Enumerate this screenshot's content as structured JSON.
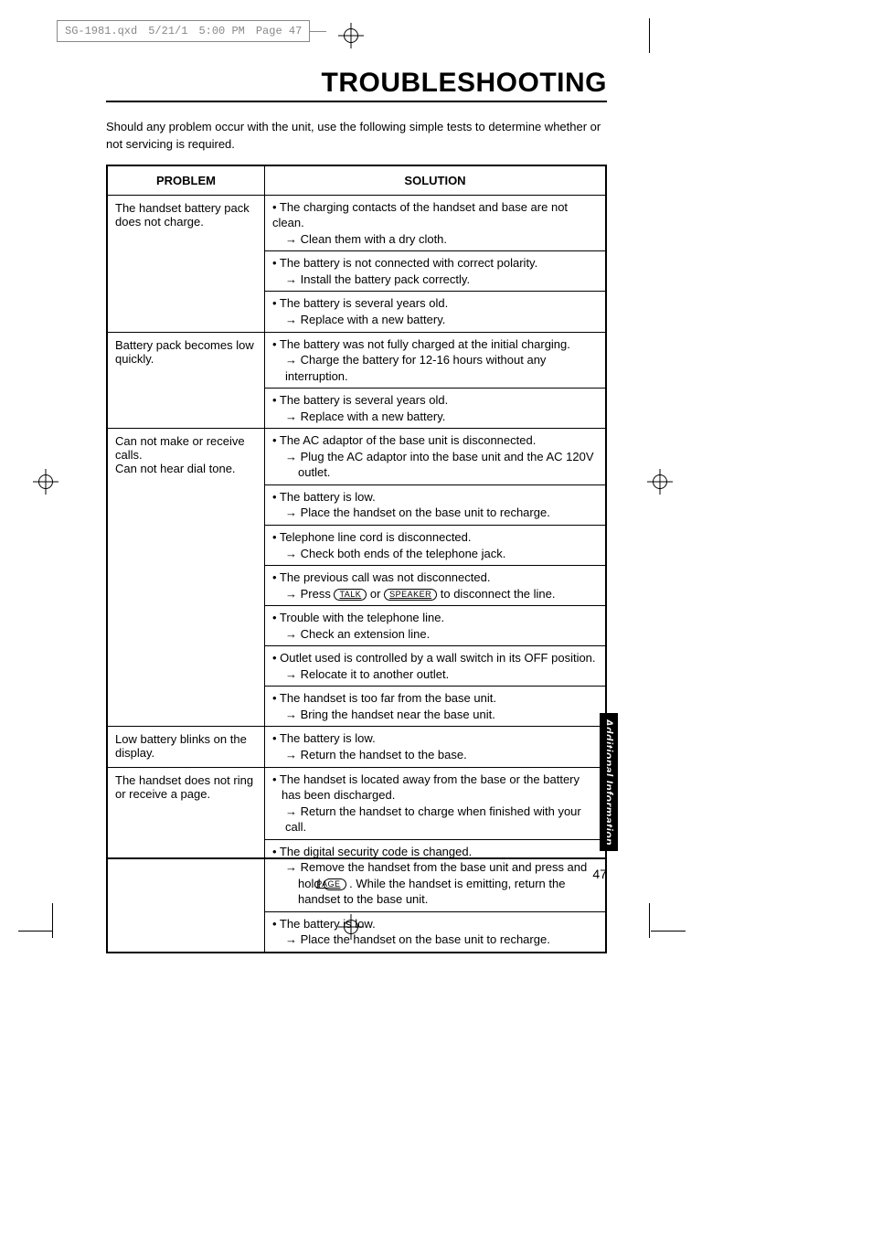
{
  "meta": {
    "file": "SG-1981.qxd",
    "date": "5/21/1",
    "time": "5:00 PM",
    "page_label": "Page 47"
  },
  "title": "TROUBLESHOOTING",
  "intro": "Should any problem occur with the unit, use the following simple tests to determine whether or not servicing is required.",
  "table": {
    "head_problem": "PROBLEM",
    "head_solution": "SOLUTION",
    "rows": [
      {
        "problem": "The handset battery pack does not charge.",
        "solutions": [
          {
            "cause": "• The charging contacts of the handset and base are not clean.",
            "action": "→ Clean them with a dry cloth."
          },
          {
            "cause": "• The battery is not connected with correct polarity.",
            "action": "→ Install the battery pack correctly."
          },
          {
            "cause": "• The battery is several years old.",
            "action": "→ Replace with a new battery."
          }
        ]
      },
      {
        "problem": "Battery pack becomes low quickly.",
        "solutions": [
          {
            "cause": "• The battery was not fully charged at the initial charging.",
            "action": "→ Charge the battery for 12-16 hours without any interruption."
          },
          {
            "cause": "• The battery is several years old.",
            "action": "→ Replace with a new battery."
          }
        ]
      },
      {
        "problem": "Can not make or receive calls.\nCan not hear dial tone.",
        "solutions": [
          {
            "cause": "• The AC adaptor of the base unit is disconnected.",
            "action": "→ Plug the AC adaptor into the base unit and the AC 120V outlet.",
            "action_indent": true
          },
          {
            "cause": "• The battery is low.",
            "action": "→ Place the handset on the base unit to recharge."
          },
          {
            "cause": "• Telephone line cord is disconnected.",
            "action": "→ Check both ends of the telephone jack."
          },
          {
            "cause": "• The previous call was not disconnected.",
            "action_html": "→ Press <span class=\"btn-oval\">TALK</span> or <span class=\"btn-oval\">SPEAKER</span> to disconnect the line."
          },
          {
            "cause": "• Trouble with the telephone line.",
            "action": "→ Check an extension line."
          },
          {
            "cause": "• Outlet used is controlled by a wall switch in its OFF position.",
            "action": "→ Relocate it to another outlet."
          },
          {
            "cause": "• The handset is too far from the base unit.",
            "action": "→ Bring the handset near the base unit."
          }
        ]
      },
      {
        "problem": "Low battery blinks on the display.",
        "solutions": [
          {
            "cause": "• The battery is low.",
            "action": "→ Return the handset to the base."
          }
        ]
      },
      {
        "problem": "The handset does not ring or receive a page.",
        "solutions": [
          {
            "cause": "• The handset is located away from the base or the battery has been discharged.",
            "action": "→ Return the handset to charge when finished with your call.",
            "cause_indent": true
          },
          {
            "cause": "• The digital security code is changed.",
            "action_html": "→ Remove the handset from the base unit and press and hold <span class=\"btn-oval\">PAGE</span> . While the handset is emitting, return the handset to the base unit.",
            "action_wrap": true
          },
          {
            "cause": "• The battery is low.",
            "action": "→ Place the handset on the base unit to recharge."
          }
        ]
      }
    ]
  },
  "side_tab": "Additional Information",
  "page_number": "47"
}
